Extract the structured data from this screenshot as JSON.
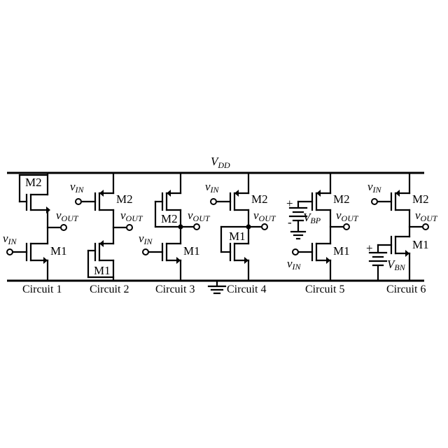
{
  "supply": {
    "main": "V",
    "sub": "DD"
  },
  "circuits": [
    {
      "caption": "Circuit 1",
      "top_transistor": "M2",
      "bottom_transistor": "M1",
      "input": {
        "main": "v",
        "sub": "IN"
      },
      "output": {
        "main": "v",
        "sub": "OUT"
      }
    },
    {
      "caption": "Circuit 2",
      "top_transistor": "M2",
      "bottom_transistor": "M1",
      "input": {
        "main": "v",
        "sub": "IN"
      },
      "output": {
        "main": "v",
        "sub": "OUT"
      }
    },
    {
      "caption": "Circuit 3",
      "top_transistor": "M2",
      "bottom_transistor": "M1",
      "input": {
        "main": "v",
        "sub": "IN"
      },
      "output": {
        "main": "v",
        "sub": "OUT"
      }
    },
    {
      "caption": "Circuit 4",
      "top_transistor": "M2",
      "bottom_transistor": "M1",
      "input": {
        "main": "v",
        "sub": "IN"
      },
      "output": {
        "main": "v",
        "sub": "OUT"
      }
    },
    {
      "caption": "Circuit 5",
      "top_transistor": "M2",
      "bottom_transistor": "M1",
      "input": {
        "main": "v",
        "sub": "IN"
      },
      "output": {
        "main": "v",
        "sub": "OUT"
      },
      "bias": {
        "main": "V",
        "sub": "BP"
      }
    },
    {
      "caption": "Circuit 6",
      "top_transistor": "M2",
      "bottom_transistor": "M1",
      "input": {
        "main": "v",
        "sub": "IN"
      },
      "output": {
        "main": "v",
        "sub": "OUT"
      },
      "bias": {
        "main": "V",
        "sub": "BN"
      }
    }
  ],
  "battery_plus": "+",
  "battery_minus": "-"
}
